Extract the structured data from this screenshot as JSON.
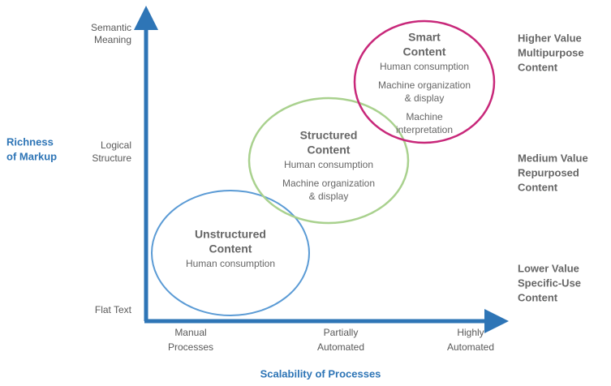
{
  "y_axis": {
    "label": [
      "Richness",
      "of Markup"
    ],
    "levels": [
      [
        "Semantic",
        "Meaning"
      ],
      [
        "Logical",
        "Structure"
      ],
      [
        "Flat Text"
      ]
    ]
  },
  "x_axis": {
    "label": "Scalability of Processes",
    "levels": [
      [
        "Manual",
        "Processes"
      ],
      [
        "Partially",
        "Automated"
      ],
      [
        "Highly",
        "Automated"
      ]
    ]
  },
  "nodes": [
    {
      "title": [
        "Unstructured",
        "Content"
      ],
      "items": [
        [
          "Human consumption"
        ]
      ]
    },
    {
      "title": [
        "Structured",
        "Content"
      ],
      "items": [
        [
          "Human consumption"
        ],
        [
          "Machine organization",
          "& display"
        ]
      ]
    },
    {
      "title": [
        "Smart",
        "Content"
      ],
      "items": [
        [
          "Human consumption"
        ],
        [
          "Machine organization",
          "& display"
        ],
        [
          "Machine",
          "interpretation"
        ]
      ]
    }
  ],
  "value_levels": [
    [
      "Higher Value",
      "Multipurpose",
      "Content"
    ],
    [
      "Medium Value",
      "Repurposed",
      "Content"
    ],
    [
      "Lower Value",
      "Specific-Use",
      "Content"
    ]
  ]
}
